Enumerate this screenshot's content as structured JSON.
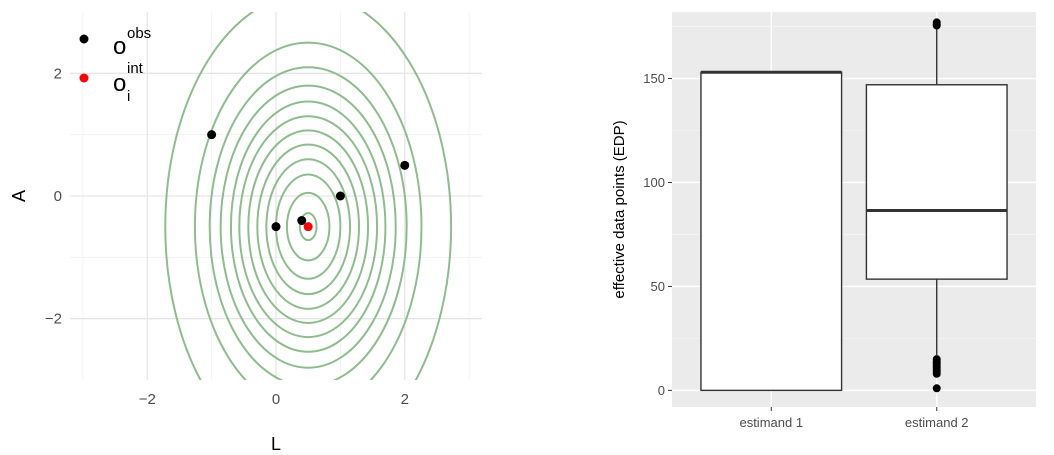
{
  "chart_data": [
    {
      "type": "scatter",
      "title": "",
      "xlabel": "L",
      "ylabel": "A",
      "xlim": [
        -3.2,
        3.2
      ],
      "ylim": [
        -3,
        3
      ],
      "x_ticks": [
        -2,
        0,
        2
      ],
      "y_ticks": [
        -2,
        0,
        2
      ],
      "x_tick_labels": [
        "−2",
        "0",
        "2"
      ],
      "y_tick_labels": [
        "−2",
        "0",
        "2"
      ],
      "grid": true,
      "legend": {
        "placement": "top-left",
        "entries": [
          {
            "base": "o",
            "sup": "obs",
            "sub": "",
            "color": "#000000"
          },
          {
            "base": "o",
            "sup": "int",
            "sub": "i",
            "color": "#ff0000"
          }
        ]
      },
      "series": [
        {
          "legend_index": 0,
          "color": "#000000",
          "points": [
            {
              "x": -1,
              "y": 1
            },
            {
              "x": 0,
              "y": -0.5
            },
            {
              "x": 0.4,
              "y": -0.4
            },
            {
              "x": 1,
              "y": 0
            },
            {
              "x": 2,
              "y": 0.5
            }
          ]
        },
        {
          "legend_index": 1,
          "color": "#ff0000",
          "points": [
            {
              "x": 0.5,
              "y": -0.5
            }
          ]
        }
      ],
      "contours": {
        "color": "#8fbc8f",
        "center": {
          "x": 0.5,
          "y": -0.5
        },
        "levels": [
          {
            "rx": 0.13,
            "ry": 0.22
          },
          {
            "rx": 0.33,
            "ry": 0.55
          },
          {
            "rx": 0.5,
            "ry": 0.85
          },
          {
            "rx": 0.65,
            "ry": 1.1
          },
          {
            "rx": 0.79,
            "ry": 1.34
          },
          {
            "rx": 0.93,
            "ry": 1.57
          },
          {
            "rx": 1.07,
            "ry": 1.8
          },
          {
            "rx": 1.2,
            "ry": 2.04
          },
          {
            "rx": 1.36,
            "ry": 2.3
          },
          {
            "rx": 1.53,
            "ry": 2.6
          },
          {
            "rx": 1.76,
            "ry": 3.0
          },
          {
            "rx": 2.22,
            "ry": 3.8
          }
        ]
      }
    },
    {
      "type": "boxplot",
      "title": "",
      "xlabel": "",
      "ylabel": "effective data points (EDP)",
      "ylim": [
        -8,
        182
      ],
      "y_ticks": [
        0,
        50,
        100,
        150
      ],
      "y_tick_labels": [
        "0",
        "50",
        "100",
        "150"
      ],
      "categories": [
        "estimand 1",
        "estimand 2"
      ],
      "grid": true,
      "boxes": [
        {
          "category": "estimand 1",
          "min": 0,
          "q1": 0,
          "median": 153,
          "q3": 153,
          "max": 153,
          "outliers": []
        },
        {
          "category": "estimand 2",
          "min": 17,
          "q1": 53.5,
          "median": 86.5,
          "q3": 147,
          "max": 175,
          "outliers": [
            1,
            8,
            9,
            10,
            11,
            12,
            13,
            14,
            15,
            175.5,
            176,
            177
          ]
        }
      ]
    }
  ]
}
